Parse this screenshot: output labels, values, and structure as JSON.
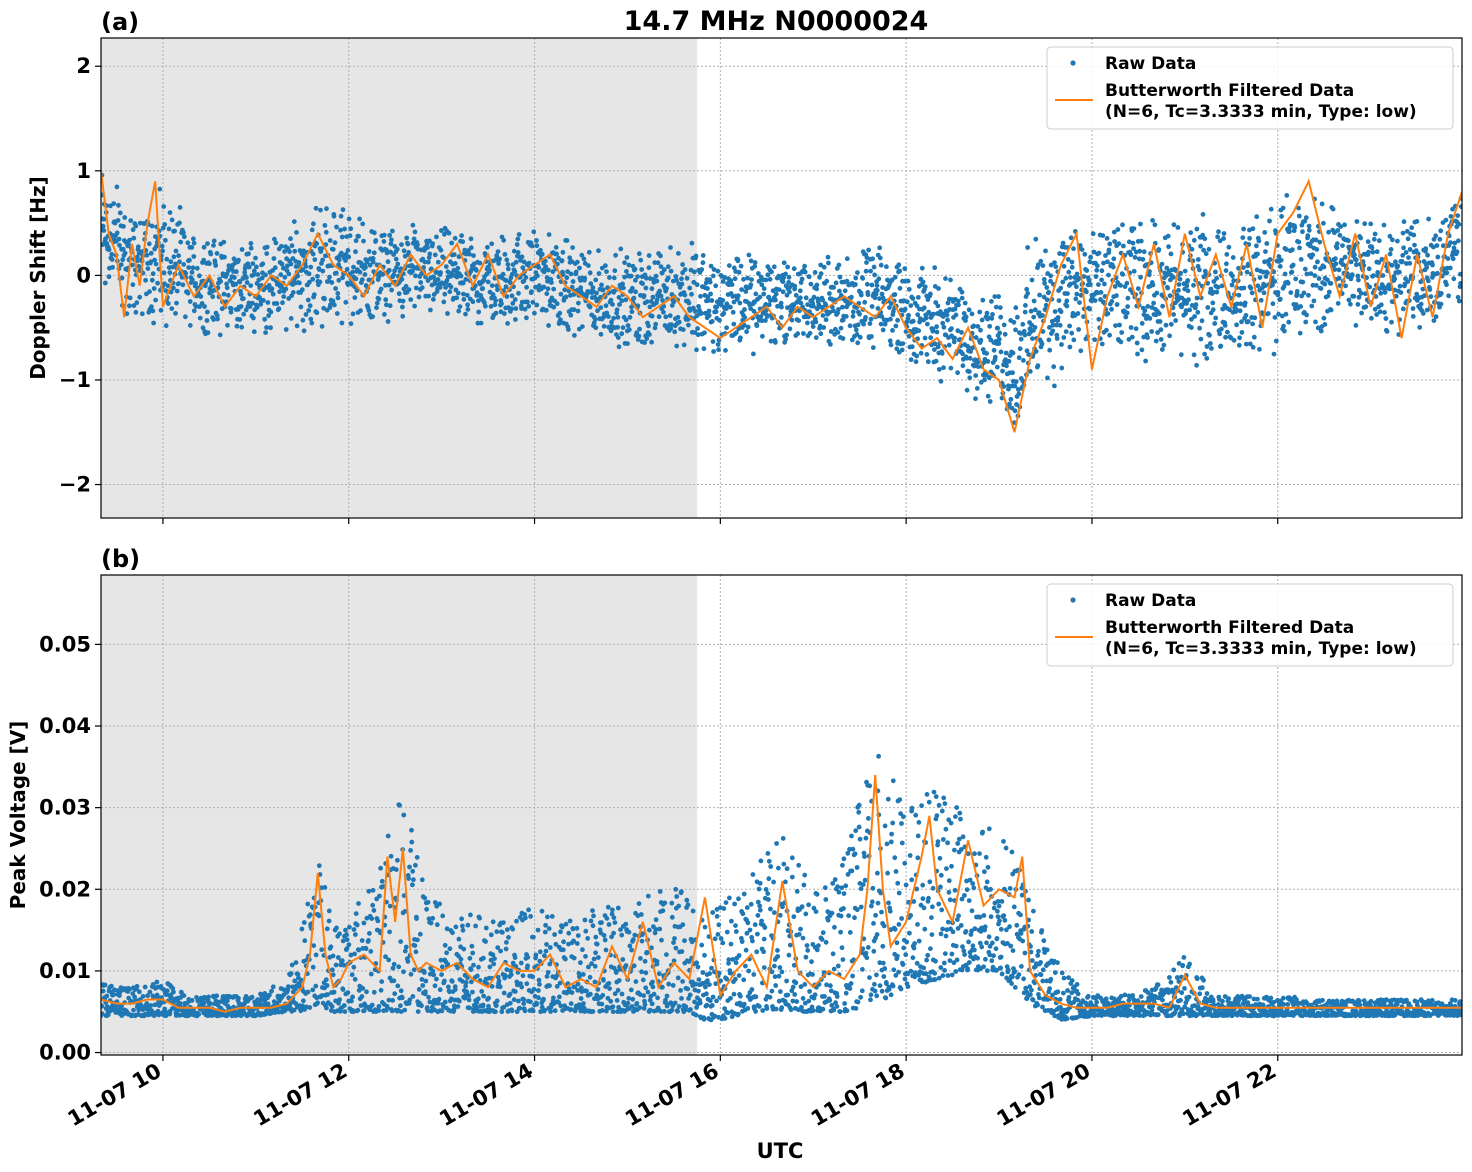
{
  "figure": {
    "title": "14.7 MHz N0000024",
    "xlabel": "UTC",
    "shading_color": "#e6e6e6",
    "raw_color": "#1f77b4",
    "filtered_color": "#ff7f0e"
  },
  "chart_data": [
    {
      "type": "scatter",
      "panel_label": "(a)",
      "ylabel": "Doppler Shift [Hz]",
      "xlim": [
        "2023-11-07 09:20",
        "2023-11-07 23:59"
      ],
      "ylim": [
        -2.32,
        2.27
      ],
      "yticks": [
        -2,
        -1,
        0,
        1,
        2
      ],
      "ytick_labels": [
        "−2",
        "−1",
        "0",
        "1",
        "2"
      ],
      "grid": true,
      "legend_position": "top-right",
      "legend": [
        "Raw Data",
        "Butterworth Filtered Data\n(N=6, Tc=3.3333 min, Type: low)"
      ],
      "shaded_region": [
        "2023-11-07 09:20",
        "2023-11-07 15:45"
      ],
      "raw_envelope": {
        "x": [
          "09:20",
          "09:30",
          "09:40",
          "09:50",
          "10:00",
          "10:20",
          "10:40",
          "11:00",
          "11:20",
          "11:40",
          "12:00",
          "12:20",
          "12:40",
          "13:00",
          "13:20",
          "13:40",
          "14:00",
          "14:20",
          "14:40",
          "15:00",
          "15:20",
          "15:40",
          "16:00",
          "16:20",
          "16:40",
          "17:00",
          "17:20",
          "17:40",
          "18:00",
          "18:20",
          "18:40",
          "19:00",
          "19:10",
          "19:20",
          "19:40",
          "20:00",
          "20:20",
          "20:40",
          "21:00",
          "21:20",
          "21:40",
          "22:00",
          "22:20",
          "22:40",
          "23:00",
          "23:20",
          "23:40",
          "23:59"
        ],
        "low": [
          -0.3,
          -0.4,
          -0.5,
          -0.5,
          -0.6,
          -0.6,
          -0.6,
          -0.6,
          -0.6,
          -0.6,
          -0.5,
          -0.5,
          -0.4,
          -0.45,
          -0.5,
          -0.55,
          -0.5,
          -0.6,
          -0.7,
          -0.75,
          -0.75,
          -0.8,
          -0.85,
          -0.8,
          -0.75,
          -0.75,
          -0.75,
          -0.75,
          -0.85,
          -1.0,
          -1.2,
          -1.35,
          -1.6,
          -1.4,
          -1.0,
          -0.9,
          -0.85,
          -0.85,
          -0.9,
          -0.9,
          -0.9,
          -0.85,
          -0.7,
          -0.5,
          -0.6,
          -0.7,
          -0.6,
          -0.3
        ],
        "high": [
          1.3,
          1.0,
          0.7,
          0.8,
          0.9,
          0.5,
          0.4,
          0.4,
          0.5,
          0.8,
          0.7,
          0.5,
          0.5,
          0.5,
          0.4,
          0.45,
          0.5,
          0.4,
          0.3,
          0.3,
          0.35,
          0.4,
          0.3,
          0.25,
          0.3,
          0.2,
          0.25,
          0.3,
          0.2,
          0.1,
          0.0,
          -0.1,
          -0.2,
          0.4,
          0.6,
          0.5,
          0.6,
          0.6,
          0.6,
          0.6,
          0.6,
          0.8,
          0.9,
          0.7,
          0.6,
          0.6,
          0.7,
          0.9
        ]
      },
      "filtered": {
        "x": [
          "09:20",
          "09:25",
          "09:30",
          "09:35",
          "09:40",
          "09:45",
          "09:50",
          "09:55",
          "10:00",
          "10:10",
          "10:20",
          "10:30",
          "10:40",
          "10:50",
          "11:00",
          "11:10",
          "11:20",
          "11:30",
          "11:40",
          "11:50",
          "12:00",
          "12:10",
          "12:20",
          "12:30",
          "12:40",
          "12:50",
          "13:00",
          "13:10",
          "13:20",
          "13:30",
          "13:40",
          "13:50",
          "14:00",
          "14:10",
          "14:20",
          "14:30",
          "14:40",
          "14:50",
          "15:00",
          "15:10",
          "15:20",
          "15:30",
          "15:40",
          "15:50",
          "16:00",
          "16:10",
          "16:20",
          "16:30",
          "16:40",
          "16:50",
          "17:00",
          "17:10",
          "17:20",
          "17:30",
          "17:40",
          "17:50",
          "18:00",
          "18:10",
          "18:20",
          "18:30",
          "18:40",
          "18:50",
          "19:00",
          "19:10",
          "19:20",
          "19:30",
          "19:40",
          "19:50",
          "20:00",
          "20:10",
          "20:20",
          "20:30",
          "20:40",
          "20:50",
          "21:00",
          "21:10",
          "21:20",
          "21:30",
          "21:40",
          "21:50",
          "22:00",
          "22:10",
          "22:20",
          "22:30",
          "22:40",
          "22:50",
          "23:00",
          "23:10",
          "23:20",
          "23:30",
          "23:40",
          "23:50",
          "23:59"
        ],
        "y": [
          1.0,
          0.4,
          0.2,
          -0.4,
          0.3,
          -0.1,
          0.5,
          0.9,
          -0.3,
          0.1,
          -0.2,
          0.0,
          -0.3,
          -0.1,
          -0.2,
          0.0,
          -0.1,
          0.1,
          0.4,
          0.1,
          0.0,
          -0.2,
          0.1,
          -0.1,
          0.2,
          0.0,
          0.1,
          0.3,
          -0.1,
          0.2,
          -0.2,
          0.0,
          0.1,
          0.2,
          -0.1,
          -0.2,
          -0.3,
          -0.1,
          -0.2,
          -0.4,
          -0.3,
          -0.2,
          -0.4,
          -0.5,
          -0.6,
          -0.5,
          -0.4,
          -0.3,
          -0.5,
          -0.3,
          -0.4,
          -0.3,
          -0.2,
          -0.3,
          -0.4,
          -0.2,
          -0.5,
          -0.7,
          -0.6,
          -0.8,
          -0.5,
          -0.9,
          -1.0,
          -1.5,
          -0.8,
          -0.4,
          0.1,
          0.4,
          -0.9,
          -0.2,
          0.2,
          -0.3,
          0.3,
          -0.4,
          0.4,
          -0.2,
          0.2,
          -0.3,
          0.3,
          -0.5,
          0.4,
          0.6,
          0.9,
          0.3,
          -0.2,
          0.4,
          -0.3,
          0.2,
          -0.6,
          0.2,
          -0.4,
          0.4,
          0.8
        ]
      }
    },
    {
      "type": "scatter",
      "panel_label": "(b)",
      "ylabel": "Peak Voltage [V]",
      "xlim": [
        "2023-11-07 09:20",
        "2023-11-07 23:59"
      ],
      "ylim": [
        -0.0003,
        0.0585
      ],
      "yticks": [
        0.0,
        0.01,
        0.02,
        0.03,
        0.04,
        0.05
      ],
      "ytick_labels": [
        "0.00",
        "0.01",
        "0.02",
        "0.03",
        "0.04",
        "0.05"
      ],
      "xtick_labels": [
        "11-07 10",
        "11-07 12",
        "11-07 14",
        "11-07 16",
        "11-07 18",
        "11-07 20",
        "11-07 22"
      ],
      "xticks": [
        "10:00",
        "12:00",
        "14:00",
        "16:00",
        "18:00",
        "20:00",
        "22:00"
      ],
      "grid": true,
      "legend_position": "top-right",
      "legend": [
        "Raw Data",
        "Butterworth Filtered Data\n(N=6, Tc=3.3333 min, Type: low)"
      ],
      "shaded_region": [
        "2023-11-07 09:20",
        "2023-11-07 15:45"
      ],
      "raw_envelope": {
        "x": [
          "09:20",
          "09:40",
          "10:00",
          "10:20",
          "10:40",
          "11:00",
          "11:20",
          "11:30",
          "11:40",
          "11:50",
          "12:00",
          "12:20",
          "12:30",
          "12:40",
          "12:50",
          "13:00",
          "13:20",
          "13:40",
          "14:00",
          "14:20",
          "14:40",
          "15:00",
          "15:20",
          "15:40",
          "15:50",
          "16:00",
          "16:20",
          "16:40",
          "17:00",
          "17:20",
          "17:40",
          "18:00",
          "18:20",
          "18:40",
          "19:00",
          "19:10",
          "19:20",
          "19:30",
          "19:40",
          "20:00",
          "20:20",
          "20:40",
          "21:00",
          "21:20",
          "21:40",
          "22:00",
          "22:30",
          "23:00",
          "23:30",
          "23:59"
        ],
        "low": [
          0.0045,
          0.0045,
          0.0045,
          0.0045,
          0.0045,
          0.0045,
          0.005,
          0.005,
          0.006,
          0.005,
          0.005,
          0.005,
          0.005,
          0.005,
          0.005,
          0.005,
          0.005,
          0.005,
          0.005,
          0.005,
          0.005,
          0.005,
          0.005,
          0.005,
          0.004,
          0.004,
          0.005,
          0.005,
          0.005,
          0.005,
          0.006,
          0.008,
          0.009,
          0.01,
          0.01,
          0.008,
          0.006,
          0.005,
          0.004,
          0.0045,
          0.0045,
          0.0045,
          0.0045,
          0.0045,
          0.0045,
          0.0045,
          0.0045,
          0.0045,
          0.0045,
          0.0045
        ],
        "high": [
          0.009,
          0.008,
          0.009,
          0.007,
          0.007,
          0.007,
          0.009,
          0.016,
          0.025,
          0.016,
          0.018,
          0.022,
          0.035,
          0.028,
          0.02,
          0.018,
          0.017,
          0.016,
          0.018,
          0.016,
          0.019,
          0.018,
          0.02,
          0.02,
          0.02,
          0.018,
          0.022,
          0.027,
          0.02,
          0.024,
          0.038,
          0.03,
          0.033,
          0.03,
          0.028,
          0.026,
          0.018,
          0.015,
          0.01,
          0.007,
          0.007,
          0.008,
          0.012,
          0.007,
          0.007,
          0.007,
          0.0065,
          0.0065,
          0.0065,
          0.0065
        ]
      },
      "filtered": {
        "x": [
          "09:20",
          "09:30",
          "09:40",
          "09:50",
          "10:00",
          "10:10",
          "10:20",
          "10:30",
          "10:40",
          "10:50",
          "11:00",
          "11:10",
          "11:20",
          "11:30",
          "11:35",
          "11:40",
          "11:45",
          "11:50",
          "11:55",
          "12:00",
          "12:10",
          "12:20",
          "12:25",
          "12:30",
          "12:35",
          "12:40",
          "12:45",
          "12:50",
          "13:00",
          "13:10",
          "13:20",
          "13:30",
          "13:40",
          "13:50",
          "14:00",
          "14:10",
          "14:20",
          "14:30",
          "14:40",
          "14:50",
          "15:00",
          "15:10",
          "15:20",
          "15:30",
          "15:40",
          "15:50",
          "16:00",
          "16:10",
          "16:20",
          "16:30",
          "16:40",
          "16:50",
          "17:00",
          "17:10",
          "17:20",
          "17:30",
          "17:35",
          "17:40",
          "17:45",
          "17:50",
          "18:00",
          "18:10",
          "18:15",
          "18:20",
          "18:30",
          "18:40",
          "18:50",
          "19:00",
          "19:10",
          "19:15",
          "19:20",
          "19:30",
          "19:40",
          "19:50",
          "20:00",
          "20:10",
          "20:20",
          "20:30",
          "20:40",
          "20:50",
          "21:00",
          "21:10",
          "21:20",
          "21:30",
          "21:40",
          "21:50",
          "22:00",
          "22:30",
          "23:00",
          "23:30",
          "23:59"
        ],
        "y": [
          0.0065,
          0.006,
          0.006,
          0.0065,
          0.0065,
          0.0055,
          0.0055,
          0.0055,
          0.005,
          0.0055,
          0.0055,
          0.0055,
          0.006,
          0.008,
          0.012,
          0.022,
          0.012,
          0.008,
          0.009,
          0.011,
          0.012,
          0.01,
          0.024,
          0.016,
          0.025,
          0.012,
          0.01,
          0.011,
          0.01,
          0.011,
          0.009,
          0.008,
          0.011,
          0.01,
          0.01,
          0.012,
          0.008,
          0.009,
          0.008,
          0.013,
          0.009,
          0.016,
          0.008,
          0.011,
          0.009,
          0.019,
          0.007,
          0.01,
          0.012,
          0.008,
          0.021,
          0.01,
          0.008,
          0.01,
          0.009,
          0.012,
          0.02,
          0.034,
          0.02,
          0.013,
          0.016,
          0.024,
          0.029,
          0.02,
          0.016,
          0.026,
          0.018,
          0.02,
          0.019,
          0.024,
          0.01,
          0.007,
          0.006,
          0.0055,
          0.0055,
          0.0055,
          0.006,
          0.006,
          0.006,
          0.0055,
          0.0095,
          0.006,
          0.0055,
          0.0055,
          0.0055,
          0.0055,
          0.0055,
          0.0055,
          0.0055,
          0.0055,
          0.0055
        ]
      }
    }
  ]
}
